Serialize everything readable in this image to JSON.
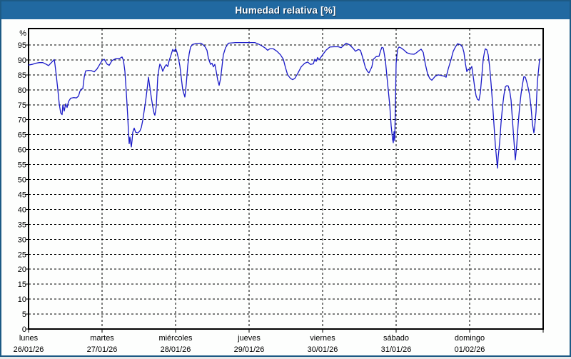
{
  "title": "Humedad relativa [%]",
  "colors": {
    "titlebar_bg": "#2169a1",
    "title_text": "#ffffff",
    "window_border": "#1d5a85",
    "chart_bg": "#fdfefd",
    "grid": "#000000",
    "line": "#1a1ac8"
  },
  "chart_data": {
    "type": "line",
    "title": "Humedad relativa [%]",
    "ylabel": "%",
    "y_unit_label": "%",
    "ylim": [
      0,
      100
    ],
    "grid": "dashed",
    "legend": "none",
    "y_ticks": [
      95,
      90,
      85,
      80,
      75,
      70,
      65,
      60,
      55,
      50,
      45,
      40,
      35,
      30,
      25,
      20,
      15,
      10,
      5,
      0
    ],
    "x_days": [
      {
        "name": "lunes",
        "date": "26/01/26"
      },
      {
        "name": "martes",
        "date": "27/01/26"
      },
      {
        "name": "miércoles",
        "date": "28/01/26"
      },
      {
        "name": "jueves",
        "date": "29/01/26"
      },
      {
        "name": "viernes",
        "date": "30/01/26"
      },
      {
        "name": "sábado",
        "date": "31/01/26"
      },
      {
        "name": "domingo",
        "date": "01/02/26"
      }
    ],
    "series": [
      {
        "name": "Humedad relativa",
        "color": "#1a1ac8",
        "x_unit": "days_since_start",
        "points": [
          [
            0,
            88.3
          ],
          [
            0.049,
            88.5
          ],
          [
            0.097,
            88.9
          ],
          [
            0.146,
            89.1
          ],
          [
            0.194,
            89.1
          ],
          [
            0.243,
            88.5
          ],
          [
            0.272,
            88.1
          ],
          [
            0.311,
            89.1
          ],
          [
            0.34,
            89.9
          ],
          [
            0.35,
            90.1
          ],
          [
            0.359,
            88.5
          ],
          [
            0.379,
            84.5
          ],
          [
            0.398,
            80.1
          ],
          [
            0.417,
            75.3
          ],
          [
            0.437,
            72.3
          ],
          [
            0.456,
            71.7
          ],
          [
            0.466,
            74.9
          ],
          [
            0.485,
            72.9
          ],
          [
            0.505,
            75.3
          ],
          [
            0.524,
            74.1
          ],
          [
            0.544,
            76.1
          ],
          [
            0.573,
            77.2
          ],
          [
            0.612,
            77.4
          ],
          [
            0.65,
            77.3
          ],
          [
            0.68,
            77.9
          ],
          [
            0.699,
            79.5
          ],
          [
            0.718,
            80.3
          ],
          [
            0.738,
            80.3
          ],
          [
            0.757,
            84.3
          ],
          [
            0.777,
            86.3
          ],
          [
            0.816,
            86.5
          ],
          [
            0.854,
            86.4
          ],
          [
            0.893,
            86.0
          ],
          [
            0.932,
            87.0
          ],
          [
            0.971,
            88.6
          ],
          [
            1.0,
            89.8
          ],
          [
            1.029,
            90.2
          ],
          [
            1.068,
            88.6
          ],
          [
            1.097,
            88.2
          ],
          [
            1.136,
            89.8
          ],
          [
            1.184,
            90.4
          ],
          [
            1.233,
            90.4
          ],
          [
            1.272,
            91.0
          ],
          [
            1.291,
            89.8
          ],
          [
            1.311,
            86.2
          ],
          [
            1.33,
            79.0
          ],
          [
            1.35,
            70.5
          ],
          [
            1.359,
            65.8
          ],
          [
            1.369,
            62.0
          ],
          [
            1.379,
            64.2
          ],
          [
            1.398,
            60.9
          ],
          [
            1.408,
            63.0
          ],
          [
            1.417,
            65.8
          ],
          [
            1.437,
            67.2
          ],
          [
            1.456,
            65.8
          ],
          [
            1.485,
            65.6
          ],
          [
            1.514,
            66.2
          ],
          [
            1.534,
            67.4
          ],
          [
            1.553,
            69.8
          ],
          [
            1.573,
            73.0
          ],
          [
            1.592,
            76.2
          ],
          [
            1.612,
            80.0
          ],
          [
            1.631,
            84.2
          ],
          [
            1.65,
            81.0
          ],
          [
            1.67,
            77.4
          ],
          [
            1.689,
            74.4
          ],
          [
            1.709,
            72.0
          ],
          [
            1.718,
            71.5
          ],
          [
            1.738,
            74.6
          ],
          [
            1.747,
            79.0
          ],
          [
            1.757,
            84.2
          ],
          [
            1.777,
            87.4
          ],
          [
            1.786,
            88.6
          ],
          [
            1.806,
            87.8
          ],
          [
            1.825,
            86.2
          ],
          [
            1.854,
            87.8
          ],
          [
            1.874,
            88.4
          ],
          [
            1.893,
            87.8
          ],
          [
            1.913,
            89.8
          ],
          [
            1.932,
            91.2
          ],
          [
            1.961,
            93.5
          ],
          [
            1.981,
            92.8
          ],
          [
            2.0,
            93.8
          ],
          [
            2.019,
            92.5
          ],
          [
            2.039,
            90.5
          ],
          [
            2.058,
            88.0
          ],
          [
            2.078,
            84.0
          ],
          [
            2.097,
            80.0
          ],
          [
            2.126,
            77.6
          ],
          [
            2.146,
            82.0
          ],
          [
            2.165,
            88.0
          ],
          [
            2.184,
            92.0
          ],
          [
            2.204,
            94.3
          ],
          [
            2.233,
            95.2
          ],
          [
            2.282,
            95.5
          ],
          [
            2.34,
            95.6
          ],
          [
            2.369,
            95.2
          ],
          [
            2.398,
            94.5
          ],
          [
            2.427,
            93.2
          ],
          [
            2.447,
            90.5
          ],
          [
            2.476,
            88.5
          ],
          [
            2.495,
            88.9
          ],
          [
            2.515,
            87.7
          ],
          [
            2.534,
            88.5
          ],
          [
            2.553,
            86.1
          ],
          [
            2.573,
            83.3
          ],
          [
            2.592,
            81.5
          ],
          [
            2.612,
            83.7
          ],
          [
            2.631,
            87.7
          ],
          [
            2.65,
            91.7
          ],
          [
            2.68,
            94.1
          ],
          [
            2.718,
            95.6
          ],
          [
            2.816,
            95.8
          ],
          [
            2.913,
            95.8
          ],
          [
            3.0,
            95.8
          ],
          [
            3.078,
            95.8
          ],
          [
            3.126,
            95.3
          ],
          [
            3.175,
            94.7
          ],
          [
            3.223,
            93.9
          ],
          [
            3.252,
            93.2
          ],
          [
            3.282,
            93.7
          ],
          [
            3.33,
            93.7
          ],
          [
            3.379,
            92.9
          ],
          [
            3.427,
            91.7
          ],
          [
            3.466,
            90.2
          ],
          [
            3.495,
            87.4
          ],
          [
            3.524,
            85.0
          ],
          [
            3.563,
            83.8
          ],
          [
            3.592,
            83.4
          ],
          [
            3.621,
            83.8
          ],
          [
            3.66,
            85.4
          ],
          [
            3.709,
            87.7
          ],
          [
            3.757,
            88.9
          ],
          [
            3.796,
            89.3
          ],
          [
            3.835,
            88.5
          ],
          [
            3.874,
            88.7
          ],
          [
            3.893,
            90.2
          ],
          [
            3.913,
            89.5
          ],
          [
            3.932,
            90.8
          ],
          [
            3.951,
            90.0
          ],
          [
            4.0,
            91.7
          ],
          [
            4.049,
            93.3
          ],
          [
            4.097,
            94.3
          ],
          [
            4.155,
            94.4
          ],
          [
            4.214,
            94.4
          ],
          [
            4.252,
            94.1
          ],
          [
            4.32,
            95.6
          ],
          [
            4.369,
            95.0
          ],
          [
            4.417,
            93.8
          ],
          [
            4.447,
            92.9
          ],
          [
            4.485,
            93.5
          ],
          [
            4.515,
            93.2
          ],
          [
            4.544,
            90.9
          ],
          [
            4.583,
            87.4
          ],
          [
            4.612,
            86.1
          ],
          [
            4.631,
            85.7
          ],
          [
            4.67,
            87.7
          ],
          [
            4.689,
            90.2
          ],
          [
            4.728,
            91.1
          ],
          [
            4.767,
            91.2
          ],
          [
            4.786,
            92.9
          ],
          [
            4.806,
            94.2
          ],
          [
            4.825,
            94.0
          ],
          [
            4.854,
            89.7
          ],
          [
            4.883,
            82.5
          ],
          [
            4.913,
            75.0
          ],
          [
            4.932,
            68.0
          ],
          [
            4.951,
            63.5
          ],
          [
            4.961,
            62.3
          ],
          [
            4.971,
            66.0
          ],
          [
            4.981,
            63.0
          ],
          [
            4.99,
            75.0
          ],
          [
            5.0,
            88.9
          ],
          [
            5.019,
            93.5
          ],
          [
            5.039,
            94.3
          ],
          [
            5.068,
            94.0
          ],
          [
            5.107,
            93.3
          ],
          [
            5.146,
            92.4
          ],
          [
            5.194,
            92.0
          ],
          [
            5.243,
            91.9
          ],
          [
            5.272,
            92.3
          ],
          [
            5.311,
            93.1
          ],
          [
            5.34,
            93.6
          ],
          [
            5.369,
            92.5
          ],
          [
            5.398,
            88.5
          ],
          [
            5.427,
            85.4
          ],
          [
            5.456,
            83.8
          ],
          [
            5.485,
            83.2
          ],
          [
            5.534,
            84.6
          ],
          [
            5.573,
            85.0
          ],
          [
            5.612,
            84.8
          ],
          [
            5.65,
            84.6
          ],
          [
            5.68,
            84.2
          ],
          [
            5.709,
            87.0
          ],
          [
            5.748,
            90.2
          ],
          [
            5.777,
            92.9
          ],
          [
            5.806,
            94.3
          ],
          [
            5.835,
            95.4
          ],
          [
            5.874,
            95.1
          ],
          [
            5.903,
            94.3
          ],
          [
            5.922,
            92.5
          ],
          [
            5.942,
            88.9
          ],
          [
            5.961,
            86.1
          ],
          [
            5.981,
            86.9
          ],
          [
            6.0,
            86.5
          ],
          [
            6.019,
            87.4
          ],
          [
            6.029,
            87.8
          ],
          [
            6.049,
            84.5
          ],
          [
            6.068,
            80.9
          ],
          [
            6.087,
            78.0
          ],
          [
            6.107,
            76.8
          ],
          [
            6.126,
            76.5
          ],
          [
            6.146,
            79.0
          ],
          [
            6.165,
            84.5
          ],
          [
            6.184,
            90.2
          ],
          [
            6.204,
            92.9
          ],
          [
            6.214,
            93.7
          ],
          [
            6.233,
            93.4
          ],
          [
            6.252,
            91.7
          ],
          [
            6.272,
            87.7
          ],
          [
            6.291,
            82.1
          ],
          [
            6.311,
            75.8
          ],
          [
            6.33,
            68.6
          ],
          [
            6.35,
            61.5
          ],
          [
            6.369,
            56.3
          ],
          [
            6.379,
            53.8
          ],
          [
            6.388,
            57.5
          ],
          [
            6.408,
            62.3
          ],
          [
            6.427,
            69.0
          ],
          [
            6.447,
            74.2
          ],
          [
            6.466,
            78.2
          ],
          [
            6.485,
            81.0
          ],
          [
            6.505,
            81.4
          ],
          [
            6.524,
            81.3
          ],
          [
            6.544,
            79.8
          ],
          [
            6.563,
            76.6
          ],
          [
            6.583,
            69.8
          ],
          [
            6.602,
            63.1
          ],
          [
            6.621,
            56.6
          ],
          [
            6.641,
            61.5
          ],
          [
            6.66,
            68.6
          ],
          [
            6.68,
            74.2
          ],
          [
            6.699,
            78.6
          ],
          [
            6.718,
            81.8
          ],
          [
            6.738,
            84.4
          ],
          [
            6.757,
            84.2
          ],
          [
            6.777,
            82.6
          ],
          [
            6.796,
            80.6
          ],
          [
            6.816,
            78.2
          ],
          [
            6.835,
            74.2
          ],
          [
            6.854,
            68.6
          ],
          [
            6.874,
            65.6
          ],
          [
            6.883,
            67.1
          ],
          [
            6.903,
            72.6
          ],
          [
            6.913,
            78.2
          ],
          [
            6.922,
            83.0
          ],
          [
            6.942,
            87.7
          ],
          [
            6.951,
            90.2
          ],
          [
            6.961,
            90.3
          ]
        ]
      }
    ]
  }
}
